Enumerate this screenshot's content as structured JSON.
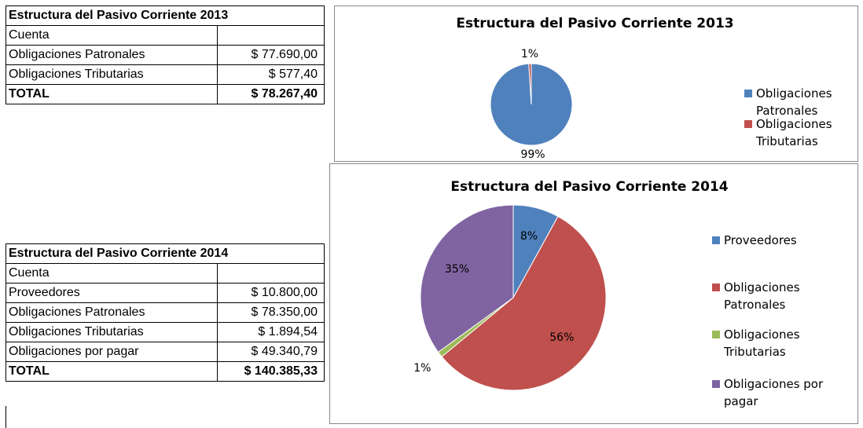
{
  "tables": [
    {
      "title": "Estructura del Pasivo Corriente 2013",
      "header": "Cuenta",
      "rows": [
        [
          "Obligaciones Patronales",
          "$ 77.690,00"
        ],
        [
          "Obligaciones Tributarias",
          "$ 577,40"
        ]
      ],
      "total": [
        "TOTAL",
        "$ 78.267,40"
      ]
    },
    {
      "title": "Estructura del Pasivo Corriente 2014",
      "header": "Cuenta",
      "rows": [
        [
          "Proveedores",
          "$ 10.800,00"
        ],
        [
          "Obligaciones Patronales",
          "$ 78.350,00"
        ],
        [
          "Obligaciones Tributarias",
          "$ 1.894,54"
        ],
        [
          "Obligaciones por pagar",
          "$ 49.340,79"
        ]
      ],
      "total": [
        "TOTAL",
        "$ 140.385,33"
      ]
    }
  ],
  "chart_data": [
    {
      "type": "pie",
      "title": "Estructura del Pasivo Corriente 2013",
      "categories": [
        "Obligaciones Patronales",
        "Obligaciones Tributarias"
      ],
      "values": [
        99,
        1
      ],
      "value_labels": [
        "99%",
        "1%"
      ],
      "colors": [
        "#4f81bd",
        "#c0504d"
      ],
      "legend": "right"
    },
    {
      "type": "pie",
      "title": "Estructura del Pasivo Corriente 2014",
      "categories": [
        "Proveedores",
        "Obligaciones Patronales",
        "Obligaciones Tributarias",
        "Obligaciones por pagar"
      ],
      "values": [
        8,
        56,
        1,
        35
      ],
      "value_labels": [
        "8%",
        "56%",
        "1%",
        "35%"
      ],
      "colors": [
        "#4f81bd",
        "#c0504d",
        "#9bbb59",
        "#8064a2"
      ],
      "legend": "right"
    }
  ]
}
